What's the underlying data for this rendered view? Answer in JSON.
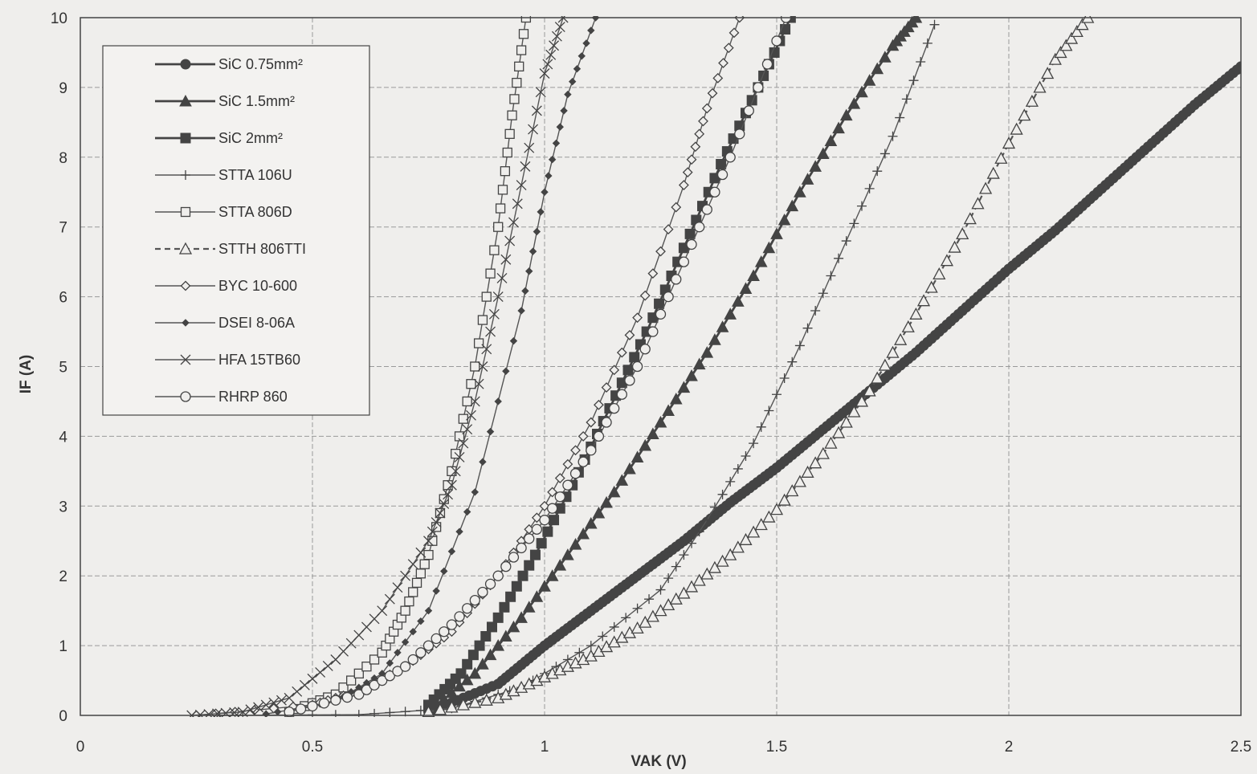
{
  "chart_data": {
    "type": "line",
    "title": "",
    "xlabel": "VAK (V)",
    "ylabel": "IF (A)",
    "xlim": [
      0,
      2.5
    ],
    "ylim": [
      0,
      10
    ],
    "x_ticks": [
      0,
      0.5,
      1,
      1.5,
      2,
      2.5
    ],
    "x_tick_labels": [
      "0",
      "0.5",
      "1",
      "1.5",
      "2",
      "2.5"
    ],
    "y_ticks": [
      0,
      1,
      2,
      3,
      4,
      5,
      6,
      7,
      8,
      9,
      10
    ],
    "y_tick_labels": [
      "0",
      "1",
      "2",
      "3",
      "4",
      "5",
      "6",
      "7",
      "8",
      "9",
      "10"
    ],
    "grid": true,
    "legend_position": "top-left",
    "series": [
      {
        "name": "SiC 0.75mm²",
        "marker": "filled-circle",
        "line": "solid-thick",
        "x": [
          0.75,
          0.9,
          1.0,
          1.1,
          1.2,
          1.3,
          1.4,
          1.5,
          1.6,
          1.7,
          1.8,
          1.9,
          2.0,
          2.1,
          2.2,
          2.3,
          2.4,
          2.5
        ],
        "y": [
          0.05,
          0.45,
          1.0,
          1.5,
          2.0,
          2.5,
          3.05,
          3.55,
          4.1,
          4.65,
          5.2,
          5.8,
          6.4,
          6.95,
          7.55,
          8.15,
          8.75,
          9.3
        ]
      },
      {
        "name": "SiC 1.5mm²",
        "marker": "filled-triangle",
        "line": "solid-thick",
        "x": [
          0.75,
          0.85,
          0.95,
          1.05,
          1.15,
          1.25,
          1.35,
          1.45,
          1.55,
          1.65,
          1.75,
          1.8
        ],
        "y": [
          0.05,
          0.6,
          1.4,
          2.3,
          3.2,
          4.2,
          5.2,
          6.3,
          7.5,
          8.6,
          9.6,
          10.0
        ]
      },
      {
        "name": "SiC 2mm²",
        "marker": "filled-square",
        "line": "solid-thick",
        "x": [
          0.75,
          0.82,
          0.9,
          0.98,
          1.06,
          1.14,
          1.22,
          1.3,
          1.38,
          1.46,
          1.53
        ],
        "y": [
          0.15,
          0.6,
          1.4,
          2.3,
          3.3,
          4.4,
          5.5,
          6.7,
          7.9,
          9.0,
          10.0
        ]
      },
      {
        "name": "STTA 106U",
        "marker": "plus",
        "line": "solid-thin",
        "x": [
          0.3,
          0.6,
          0.8,
          0.95,
          1.1,
          1.25,
          1.35,
          1.45,
          1.55,
          1.65,
          1.75,
          1.84
        ],
        "y": [
          0.0,
          0.01,
          0.1,
          0.4,
          1.0,
          1.8,
          2.8,
          3.9,
          5.3,
          6.8,
          8.3,
          9.9
        ]
      },
      {
        "name": "STTA 806D",
        "marker": "open-square",
        "line": "solid-thin",
        "x": [
          0.45,
          0.55,
          0.65,
          0.7,
          0.75,
          0.8,
          0.85,
          0.9,
          0.93,
          0.96
        ],
        "y": [
          0.05,
          0.3,
          0.9,
          1.5,
          2.3,
          3.5,
          5.0,
          7.0,
          8.6,
          10.0
        ]
      },
      {
        "name": "STTH 806TTI",
        "marker": "open-triangle",
        "line": "dashed",
        "x": [
          0.75,
          0.9,
          1.0,
          1.1,
          1.2,
          1.3,
          1.4,
          1.5,
          1.6,
          1.7,
          1.8,
          1.9,
          2.0,
          2.1,
          2.17
        ],
        "y": [
          0.05,
          0.25,
          0.55,
          0.85,
          1.25,
          1.75,
          2.3,
          2.95,
          3.75,
          4.65,
          5.75,
          6.9,
          8.2,
          9.4,
          10.0
        ]
      },
      {
        "name": "BYC 10-600",
        "marker": "open-diamond",
        "line": "solid-thin",
        "x": [
          0.25,
          0.5,
          0.6,
          0.7,
          0.8,
          0.9,
          1.0,
          1.1,
          1.2,
          1.3,
          1.35,
          1.42
        ],
        "y": [
          0.0,
          0.15,
          0.35,
          0.7,
          1.2,
          2.0,
          3.0,
          4.2,
          5.7,
          7.6,
          8.7,
          10.0
        ]
      },
      {
        "name": "DSEI 8-06A",
        "marker": "filled-diamond",
        "line": "solid-thin",
        "x": [
          0.4,
          0.55,
          0.65,
          0.75,
          0.85,
          0.95,
          1.0,
          1.05,
          1.11
        ],
        "y": [
          0.02,
          0.2,
          0.6,
          1.5,
          3.2,
          5.8,
          7.5,
          8.9,
          10.0
        ]
      },
      {
        "name": "HFA 15TB60",
        "marker": "x-cross",
        "line": "solid-thin",
        "x": [
          0.24,
          0.35,
          0.45,
          0.55,
          0.65,
          0.75,
          0.8,
          0.85,
          0.9,
          0.95,
          1.0,
          1.04
        ],
        "y": [
          0.0,
          0.05,
          0.25,
          0.8,
          1.5,
          2.5,
          3.3,
          4.5,
          6.0,
          7.6,
          9.2,
          10.0
        ]
      },
      {
        "name": "RHRP 860",
        "marker": "open-circle",
        "line": "solid-thin",
        "x": [
          0.45,
          0.6,
          0.7,
          0.8,
          0.9,
          1.0,
          1.1,
          1.2,
          1.3,
          1.4,
          1.52
        ],
        "y": [
          0.05,
          0.3,
          0.7,
          1.3,
          2.0,
          2.8,
          3.8,
          5.0,
          6.5,
          8.0,
          10.0
        ]
      }
    ]
  }
}
